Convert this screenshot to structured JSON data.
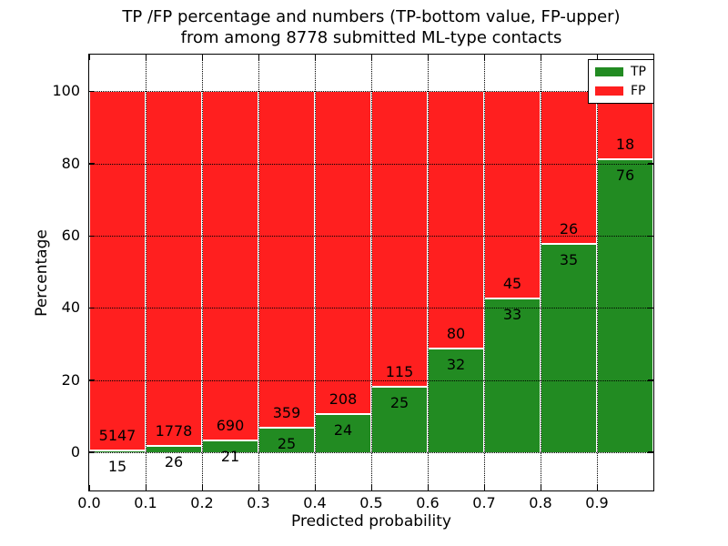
{
  "figure": {
    "title_line1": "TP /FP percentage and numbers (TP-bottom value, FP-upper)",
    "title_line2": "from among 8778 submitted ML-type contacts"
  },
  "axes": {
    "xlabel": "Predicted probability",
    "ylabel": "Percentage"
  },
  "legend": {
    "position": "upper right",
    "entries": [
      {
        "label": "TP",
        "color": "#228b22"
      },
      {
        "label": "FP",
        "color": "#ff1f1f"
      }
    ]
  },
  "chart_data": {
    "type": "bar",
    "stacked": true,
    "normalized_to_percent": true,
    "title": "TP /FP percentage and numbers (TP-bottom value, FP-upper)\nfrom among 8778 submitted ML-type contacts",
    "xlabel": "Predicted probability",
    "ylabel": "Percentage",
    "total_contacts": 8778,
    "bin_edges": [
      0.0,
      0.1,
      0.2,
      0.3,
      0.4,
      0.5,
      0.6,
      0.7,
      0.8,
      0.9,
      1.0
    ],
    "categories": [
      "0.0-0.1",
      "0.1-0.2",
      "0.2-0.3",
      "0.3-0.4",
      "0.4-0.5",
      "0.5-0.6",
      "0.6-0.7",
      "0.7-0.8",
      "0.8-0.9",
      "0.9-1.0"
    ],
    "series": [
      {
        "name": "TP",
        "color": "#228b22",
        "counts": [
          15,
          26,
          21,
          25,
          24,
          25,
          32,
          33,
          35,
          76
        ]
      },
      {
        "name": "FP",
        "color": "#ff1f1f",
        "counts": [
          5147,
          1778,
          690,
          359,
          208,
          115,
          80,
          45,
          26,
          18
        ]
      }
    ],
    "tp_percent_of_bin": [
      0.29,
      1.44,
      2.95,
      6.51,
      10.34,
      17.86,
      28.57,
      42.31,
      57.38,
      80.85
    ],
    "xticks": [
      "0.0",
      "0.1",
      "0.2",
      "0.3",
      "0.4",
      "0.5",
      "0.6",
      "0.7",
      "0.8",
      "0.9"
    ],
    "yticks": [
      0,
      20,
      40,
      60,
      80,
      100
    ],
    "xlim": [
      0.0,
      1.0
    ],
    "ylim": [
      -10.6,
      110.2
    ],
    "grid": true,
    "grid_style": "dotted",
    "legend_position": "upper right"
  }
}
